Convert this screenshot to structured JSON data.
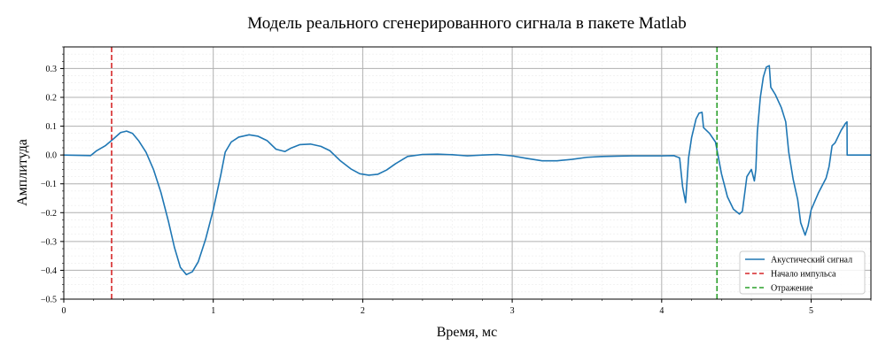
{
  "chart_data": {
    "type": "line",
    "title": "Модель реального сгенерированного сигнала в пакете Matlab",
    "xlabel": "Время, мс",
    "ylabel": "Амплитуда",
    "xlim": [
      0,
      5.4
    ],
    "ylim": [
      -0.5,
      0.375
    ],
    "xticks": [
      0,
      1,
      2,
      3,
      4,
      5
    ],
    "yticks": [
      -0.5,
      -0.4,
      -0.3,
      -0.2,
      -0.1,
      0.0,
      0.1,
      0.2,
      0.3
    ],
    "ytick_labels": [
      "−0.5",
      "−0.4",
      "−0.3",
      "−0.2",
      "−0.1",
      "0.0",
      "0.1",
      "0.2",
      "0.3"
    ],
    "grid": true,
    "legend_position": "bottom-right",
    "series": [
      {
        "name": "Акустический сигнал",
        "color": "#1f77b4",
        "style": "solid",
        "points": [
          [
            0.0,
            0.0
          ],
          [
            0.18,
            -0.002
          ],
          [
            0.22,
            0.015
          ],
          [
            0.28,
            0.033
          ],
          [
            0.33,
            0.055
          ],
          [
            0.38,
            0.078
          ],
          [
            0.42,
            0.083
          ],
          [
            0.46,
            0.075
          ],
          [
            0.5,
            0.05
          ],
          [
            0.55,
            0.01
          ],
          [
            0.6,
            -0.05
          ],
          [
            0.65,
            -0.13
          ],
          [
            0.7,
            -0.23
          ],
          [
            0.74,
            -0.32
          ],
          [
            0.78,
            -0.39
          ],
          [
            0.82,
            -0.415
          ],
          [
            0.86,
            -0.405
          ],
          [
            0.9,
            -0.37
          ],
          [
            0.95,
            -0.29
          ],
          [
            1.0,
            -0.19
          ],
          [
            1.05,
            -0.07
          ],
          [
            1.08,
            0.01
          ],
          [
            1.12,
            0.045
          ],
          [
            1.17,
            0.062
          ],
          [
            1.24,
            0.07
          ],
          [
            1.3,
            0.065
          ],
          [
            1.36,
            0.05
          ],
          [
            1.42,
            0.02
          ],
          [
            1.48,
            0.012
          ],
          [
            1.52,
            0.024
          ],
          [
            1.58,
            0.036
          ],
          [
            1.65,
            0.038
          ],
          [
            1.72,
            0.03
          ],
          [
            1.78,
            0.015
          ],
          [
            1.85,
            -0.02
          ],
          [
            1.92,
            -0.048
          ],
          [
            1.98,
            -0.065
          ],
          [
            2.04,
            -0.07
          ],
          [
            2.1,
            -0.067
          ],
          [
            2.16,
            -0.052
          ],
          [
            2.22,
            -0.03
          ],
          [
            2.3,
            -0.005
          ],
          [
            2.4,
            0.002
          ],
          [
            2.5,
            0.003
          ],
          [
            2.6,
            0.001
          ],
          [
            2.7,
            -0.003
          ],
          [
            2.8,
            0.0
          ],
          [
            2.9,
            0.002
          ],
          [
            3.0,
            -0.003
          ],
          [
            3.1,
            -0.012
          ],
          [
            3.2,
            -0.02
          ],
          [
            3.3,
            -0.02
          ],
          [
            3.4,
            -0.015
          ],
          [
            3.5,
            -0.008
          ],
          [
            3.6,
            -0.005
          ],
          [
            3.7,
            -0.004
          ],
          [
            3.8,
            -0.003
          ],
          [
            3.9,
            -0.003
          ],
          [
            4.0,
            -0.003
          ],
          [
            4.08,
            -0.002
          ],
          [
            4.12,
            -0.01
          ],
          [
            4.14,
            -0.11
          ],
          [
            4.16,
            -0.165
          ],
          [
            4.18,
            -0.01
          ],
          [
            4.2,
            0.06
          ],
          [
            4.23,
            0.125
          ],
          [
            4.25,
            0.145
          ],
          [
            4.27,
            0.148
          ],
          [
            4.28,
            0.095
          ],
          [
            4.32,
            0.075
          ],
          [
            4.36,
            0.045
          ],
          [
            4.4,
            -0.065
          ],
          [
            4.44,
            -0.145
          ],
          [
            4.48,
            -0.188
          ],
          [
            4.52,
            -0.205
          ],
          [
            4.54,
            -0.195
          ],
          [
            4.57,
            -0.075
          ],
          [
            4.6,
            -0.05
          ],
          [
            4.62,
            -0.09
          ],
          [
            4.63,
            -0.05
          ],
          [
            4.64,
            0.08
          ],
          [
            4.66,
            0.2
          ],
          [
            4.68,
            0.27
          ],
          [
            4.7,
            0.305
          ],
          [
            4.72,
            0.31
          ],
          [
            4.73,
            0.235
          ],
          [
            4.76,
            0.21
          ],
          [
            4.8,
            0.165
          ],
          [
            4.83,
            0.115
          ],
          [
            4.85,
            0.01
          ],
          [
            4.88,
            -0.085
          ],
          [
            4.91,
            -0.155
          ],
          [
            4.93,
            -0.235
          ],
          [
            4.96,
            -0.278
          ],
          [
            4.98,
            -0.245
          ],
          [
            5.0,
            -0.19
          ],
          [
            5.05,
            -0.13
          ],
          [
            5.1,
            -0.08
          ],
          [
            5.12,
            -0.04
          ],
          [
            5.14,
            0.032
          ],
          [
            5.16,
            0.042
          ],
          [
            5.2,
            0.085
          ],
          [
            5.23,
            0.11
          ],
          [
            5.24,
            0.115
          ],
          [
            5.241,
            0.0
          ],
          [
            5.4,
            0.0
          ]
        ]
      },
      {
        "name": "Начало импульса",
        "color": "#d62728",
        "style": "dashed",
        "vline": 0.32
      },
      {
        "name": "Отражение",
        "color": "#2ca02c",
        "style": "dashed",
        "vline": 4.37
      }
    ]
  }
}
